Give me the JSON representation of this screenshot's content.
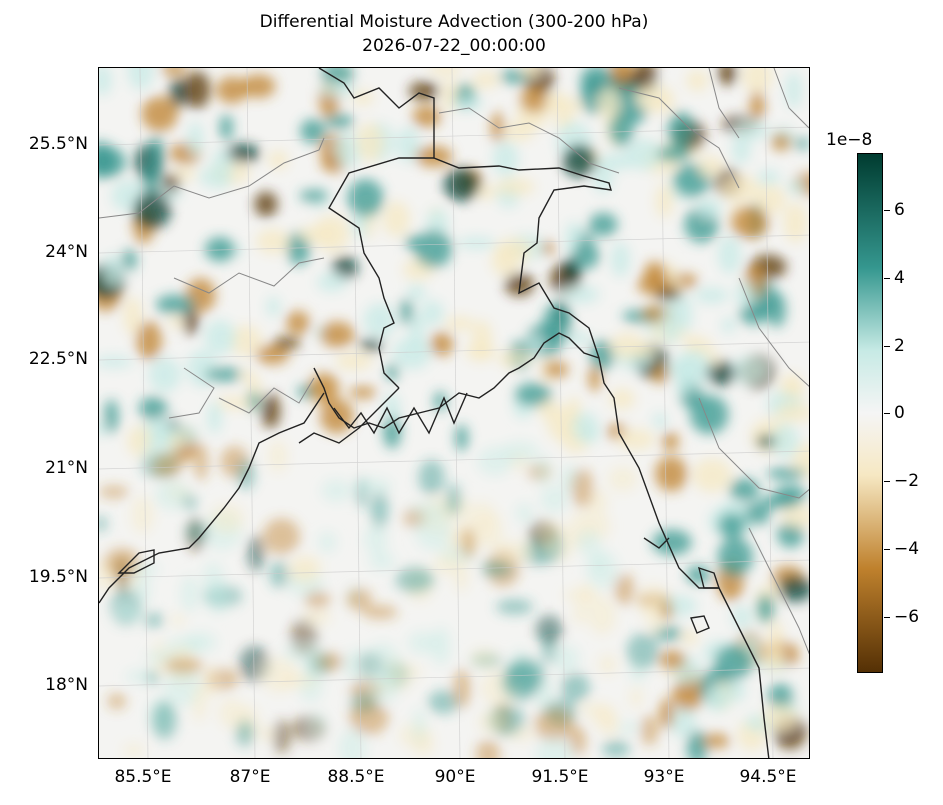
{
  "title": "Differential Moisture Advection (300-200 hPa)",
  "subtitle": "2026-07-22_00:00:00",
  "lat_labels": [
    "25.5°N",
    "24°N",
    "22.5°N",
    "21°N",
    "19.5°N",
    "18°N"
  ],
  "lon_labels": [
    "85.5°E",
    "87°E",
    "88.5°E",
    "90°E",
    "91.5°E",
    "93°E",
    "94.5°E"
  ],
  "colorbar": {
    "exponent_label": "1e−8",
    "tick_labels": [
      "6",
      "4",
      "2",
      "0",
      "−2",
      "−4",
      "−6"
    ],
    "colormap": "BrBG",
    "range": [
      -7.5,
      7.5
    ],
    "colors": {
      "max": "#003c30",
      "high": "#35978f",
      "mid_high": "#c7eae5",
      "zero": "#f5f5f5",
      "mid_low": "#f6e8c3",
      "low": "#bf812d",
      "min": "#543005"
    }
  },
  "map_extent": {
    "lon": [
      84.9,
      95.0
    ],
    "lat": [
      17.0,
      26.6
    ]
  },
  "coastline_color": "#222222",
  "border_color": "#888888",
  "gridline_color": "#cccccc"
}
